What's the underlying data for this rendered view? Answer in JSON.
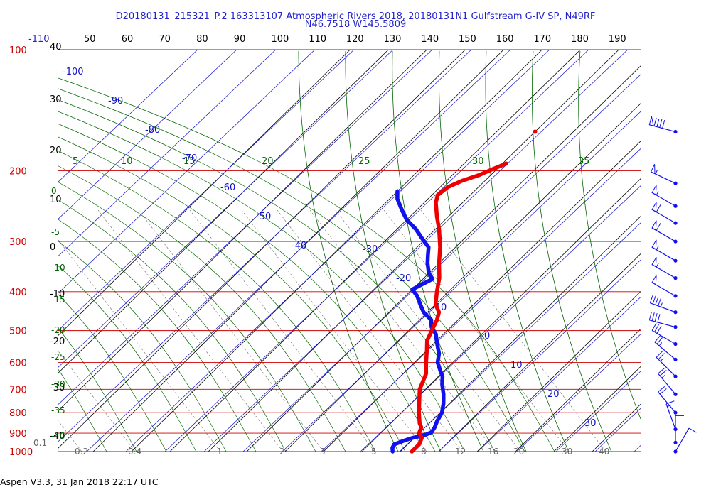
{
  "header": {
    "title_line1": "D20180131_215321_P.2 163313107 Atmospheric Rivers 2018, 20180131N1 Gulfstream G-IV SP, N49RF",
    "title_line2": "N46.7518 W145.5809"
  },
  "footer": {
    "text": "Aspen V3.3, 31 Jan 2018  22:17 UTC"
  },
  "colors": {
    "temperature": "#ee0000",
    "dewpoint": "#1111ee",
    "isobar": "#cc0000",
    "isotherm": "#000000",
    "theta_axis": "#2222cc",
    "dry_adiabat": "#1111cc",
    "moist_adiabat": "#006600",
    "mixing_ratio": "#666666",
    "wind_barb": "#1111ee"
  },
  "chart_data": {
    "type": "skew-t log-p sounding",
    "y_scale": "log pressure",
    "pressure_labels": [
      "100",
      "200",
      "300",
      "400",
      "500",
      "600",
      "700",
      "800",
      "900",
      "1000"
    ],
    "celsius_labels": [
      "40",
      "30",
      "20",
      "10",
      "0",
      "-10",
      "-20",
      "-30",
      "-40"
    ],
    "theta_top_labels": [
      "-110",
      "50",
      "60",
      "70",
      "80",
      "90",
      "100",
      "110",
      "120",
      "130",
      "140",
      "150",
      "160",
      "170",
      "180",
      "190"
    ],
    "dry_adiabat_labels": [
      "-100",
      "-90",
      "-80",
      "-70",
      "-60",
      "-50",
      "-40",
      "-30",
      "-20",
      "-10",
      "0",
      "10",
      "20",
      "30"
    ],
    "theta_e_labels": [
      "5",
      "10",
      "15",
      "20",
      "25",
      "30",
      "35"
    ],
    "moist_labels": [
      "0",
      "-5",
      "-10",
      "-15",
      "-20",
      "-25",
      "-30",
      "-35",
      "-40"
    ],
    "mixing_ratio_labels": [
      "0.1",
      "0.2",
      "0.4",
      "1",
      "2",
      "3",
      "5",
      "8",
      "12",
      "16",
      "20",
      "30",
      "40"
    ],
    "temperature_profile": [
      {
        "p": 1000,
        "t": 3
      },
      {
        "p": 960,
        "t": 3
      },
      {
        "p": 925,
        "t": 2
      },
      {
        "p": 900,
        "t": 0
      },
      {
        "p": 870,
        "t": -1
      },
      {
        "p": 850,
        "t": -2.5
      },
      {
        "p": 800,
        "t": -5.5
      },
      {
        "p": 700,
        "t": -11.5
      },
      {
        "p": 640,
        "t": -14
      },
      {
        "p": 600,
        "t": -17
      },
      {
        "p": 560,
        "t": -20
      },
      {
        "p": 530,
        "t": -22.5
      },
      {
        "p": 500,
        "t": -24
      },
      {
        "p": 470,
        "t": -25.5
      },
      {
        "p": 450,
        "t": -27
      },
      {
        "p": 430,
        "t": -30
      },
      {
        "p": 400,
        "t": -33
      },
      {
        "p": 370,
        "t": -36
      },
      {
        "p": 340,
        "t": -40
      },
      {
        "p": 310,
        "t": -44
      },
      {
        "p": 280,
        "t": -49
      },
      {
        "p": 260,
        "t": -53
      },
      {
        "p": 240,
        "t": -57
      },
      {
        "p": 230,
        "t": -58.5
      },
      {
        "p": 220,
        "t": -58
      },
      {
        "p": 212,
        "t": -56
      },
      {
        "p": 205,
        "t": -53
      },
      {
        "p": 198,
        "t": -51
      },
      {
        "p": 192,
        "t": -49
      }
    ],
    "temperature_isolated_point": {
      "p": 160,
      "t": -50
    },
    "dewpoint_profile": [
      {
        "p": 1000,
        "t": -2
      },
      {
        "p": 980,
        "t": -3
      },
      {
        "p": 960,
        "t": -3.5
      },
      {
        "p": 940,
        "t": -2
      },
      {
        "p": 925,
        "t": -0.5
      },
      {
        "p": 910,
        "t": 2
      },
      {
        "p": 895,
        "t": 3
      },
      {
        "p": 870,
        "t": 2.5
      },
      {
        "p": 840,
        "t": 1.5
      },
      {
        "p": 800,
        "t": 0.5
      },
      {
        "p": 760,
        "t": -1.5
      },
      {
        "p": 720,
        "t": -4
      },
      {
        "p": 680,
        "t": -7
      },
      {
        "p": 650,
        "t": -9
      },
      {
        "p": 630,
        "t": -11
      },
      {
        "p": 600,
        "t": -14
      },
      {
        "p": 570,
        "t": -16
      },
      {
        "p": 550,
        "t": -18
      },
      {
        "p": 530,
        "t": -20
      },
      {
        "p": 510,
        "t": -22
      },
      {
        "p": 490,
        "t": -25
      },
      {
        "p": 470,
        "t": -27
      },
      {
        "p": 450,
        "t": -31
      },
      {
        "p": 430,
        "t": -34
      },
      {
        "p": 410,
        "t": -37
      },
      {
        "p": 395,
        "t": -40
      },
      {
        "p": 385,
        "t": -39
      },
      {
        "p": 372,
        "t": -37.5
      },
      {
        "p": 360,
        "t": -40
      },
      {
        "p": 340,
        "t": -43
      },
      {
        "p": 325,
        "t": -45
      },
      {
        "p": 310,
        "t": -47
      },
      {
        "p": 295,
        "t": -51
      },
      {
        "p": 280,
        "t": -55
      },
      {
        "p": 265,
        "t": -60
      },
      {
        "p": 250,
        "t": -64
      },
      {
        "p": 235,
        "t": -68
      },
      {
        "p": 225,
        "t": -70
      }
    ],
    "wind_barbs": [
      {
        "p": 160,
        "speed_kt": 90,
        "dir_deg": 255
      },
      {
        "p": 215,
        "speed_kt": 55,
        "dir_deg": 245
      },
      {
        "p": 245,
        "speed_kt": 55,
        "dir_deg": 240
      },
      {
        "p": 270,
        "speed_kt": 60,
        "dir_deg": 240
      },
      {
        "p": 300,
        "speed_kt": 60,
        "dir_deg": 240
      },
      {
        "p": 335,
        "speed_kt": 55,
        "dir_deg": 240
      },
      {
        "p": 370,
        "speed_kt": 55,
        "dir_deg": 240
      },
      {
        "p": 410,
        "speed_kt": 50,
        "dir_deg": 240
      },
      {
        "p": 450,
        "speed_kt": 45,
        "dir_deg": 250
      },
      {
        "p": 490,
        "speed_kt": 40,
        "dir_deg": 255
      },
      {
        "p": 540,
        "speed_kt": 30,
        "dir_deg": 240
      },
      {
        "p": 590,
        "speed_kt": 25,
        "dir_deg": 230
      },
      {
        "p": 650,
        "speed_kt": 25,
        "dir_deg": 225
      },
      {
        "p": 720,
        "speed_kt": 25,
        "dir_deg": 220
      },
      {
        "p": 800,
        "speed_kt": 20,
        "dir_deg": 220
      },
      {
        "p": 880,
        "speed_kt": 15,
        "dir_deg": 200
      },
      {
        "p": 950,
        "speed_kt": 10,
        "dir_deg": 180
      },
      {
        "p": 1000,
        "speed_kt": 10,
        "dir_deg": 150
      }
    ]
  }
}
